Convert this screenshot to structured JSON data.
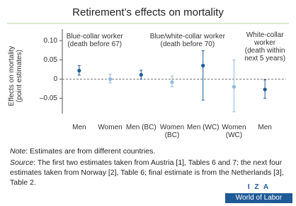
{
  "chart_data": {
    "type": "errorbar",
    "title": "Retirement’s effects on mortality",
    "y_label": "Effects on mortality\n(point estimates)",
    "categories": [
      "Men",
      "Women",
      "Men (BC)",
      "Women (BC)",
      "Men (WC)",
      "Women (WC)",
      "Men"
    ],
    "series": [
      {
        "values": [
          0.022,
          0,
          0.011,
          -0.008,
          0.035,
          -0.02,
          -0.027
        ],
        "lower": [
          0.01,
          -0.01,
          0,
          -0.02,
          -0.055,
          -0.085,
          -0.05
        ],
        "upper": [
          0.035,
          0.013,
          0.023,
          0.008,
          0.074,
          0.05,
          -0.002
        ],
        "colors": [
          "#1f5a96",
          "#8fb8de",
          "#1f5a96",
          "#8fb8de",
          "#1f5a96",
          "#8fb8de",
          "#1f5a96"
        ]
      }
    ],
    "ylim": [
      -0.09,
      0.13
    ],
    "yticks": [
      {
        "value": 0.1,
        "label": "0.10"
      },
      0.05,
      0,
      {
        "value": -0.05,
        "label": "–0.05"
      }
    ],
    "reference_line": 0,
    "annotations": [
      {
        "text": "Blue-collar worker\n(death before 67)",
        "category": 0.5
      },
      {
        "text": "Blue/white-collar worker\n(death before 70)",
        "category": 3.5
      },
      {
        "text": "White-collar\nworker\n(death within\nnext 5 years)",
        "category": 6
      }
    ]
  },
  "notes": {
    "note_label": "Note",
    "note_text": ": Estimates are from different countries.",
    "source_label": "Source",
    "source_text": ": The first two estimates taken from Austria [1], Tables 6 and 7; the next four estimates taken from Norway [2], Table 6; final estimate is from the Netherlands [3], Table 2."
  },
  "logo": {
    "top": "I Z A",
    "bottom": "World of Labor"
  }
}
